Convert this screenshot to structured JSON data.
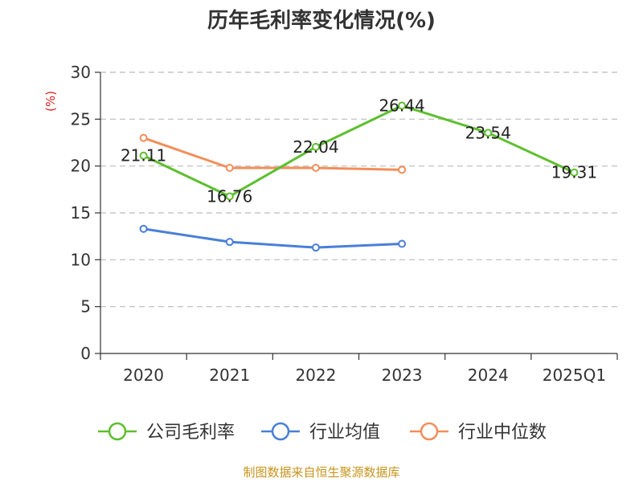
{
  "chart_data": {
    "type": "line",
    "title": "历年毛利率变化情况(%)",
    "unit_label": "(%)",
    "categories": [
      "2020",
      "2021",
      "2022",
      "2023",
      "2024",
      "2025Q1"
    ],
    "ylim": [
      0,
      30
    ],
    "yticks": [
      "0",
      "5",
      "10",
      "15",
      "20",
      "25",
      "30"
    ],
    "grid": true,
    "legend_position": "bottom",
    "series": [
      {
        "name": "公司毛利率",
        "color": "#5cc02e",
        "values": [
          21.11,
          16.76,
          22.04,
          26.44,
          23.54,
          19.31
        ],
        "labels": [
          "21.11",
          "16.76",
          "22.04",
          "26.44",
          "23.54",
          "19.31"
        ]
      },
      {
        "name": "行业均值",
        "color": "#4a7fd8",
        "values": [
          13.3,
          11.9,
          11.3,
          11.7,
          null,
          null
        ]
      },
      {
        "name": "行业中位数",
        "color": "#f28e5a",
        "values": [
          23.0,
          19.8,
          19.8,
          19.6,
          null,
          null
        ]
      }
    ]
  },
  "footer": {
    "source": "制图数据来自恒生聚源数据库"
  }
}
